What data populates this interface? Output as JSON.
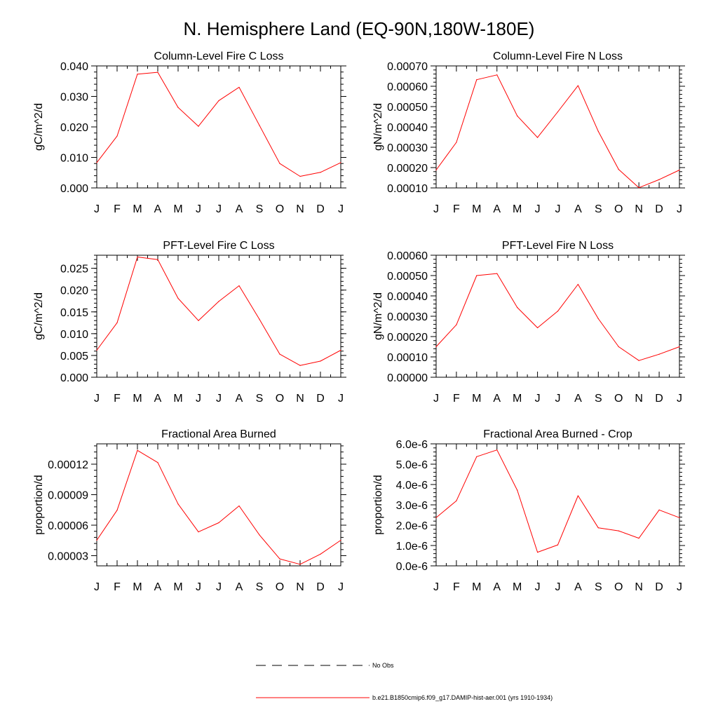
{
  "figure": {
    "title": "N. Hemisphere Land (EQ-90N,180W-180E)"
  },
  "colors": {
    "model_line": "#ff0000",
    "obs_line": "#000000",
    "axes": "#000000"
  },
  "legend": {
    "entries": [
      {
        "label": "No Obs",
        "style": "dashed",
        "color": "#000000"
      },
      {
        "label": "b.e21.B1850cmip6.f09_g17.DAMIP-hist-aer.001 (yrs 1910-1934)",
        "style": "solid",
        "color": "#ff0000"
      }
    ]
  },
  "chart_data": [
    {
      "type": "line",
      "title": "Column-Level Fire C Loss",
      "ylabel": "gC/m^2/d",
      "xlabel": "",
      "categories": [
        "J",
        "F",
        "M",
        "A",
        "M",
        "J",
        "J",
        "A",
        "S",
        "O",
        "N",
        "D",
        "J"
      ],
      "ylim": [
        0.0,
        0.04
      ],
      "yticks": [
        "0.000",
        "0.010",
        "0.020",
        "0.030",
        "0.040"
      ],
      "ytick_values": [
        0.0,
        0.01,
        0.02,
        0.03,
        0.04
      ],
      "series": [
        {
          "values": [
            0.0083,
            0.017,
            0.0373,
            0.0379,
            0.0264,
            0.0202,
            0.0286,
            0.033,
            0.0205,
            0.008,
            0.0038,
            0.0051,
            0.0083
          ]
        }
      ]
    },
    {
      "type": "line",
      "title": "Column-Level Fire N Loss",
      "ylabel": "gN/m^2/d",
      "xlabel": "",
      "categories": [
        "J",
        "F",
        "M",
        "A",
        "M",
        "J",
        "J",
        "A",
        "S",
        "O",
        "N",
        "D",
        "J"
      ],
      "ylim": [
        0.0001,
        0.0007
      ],
      "yticks": [
        "0.00010",
        "0.00020",
        "0.00030",
        "0.00040",
        "0.00050",
        "0.00060",
        "0.00070"
      ],
      "ytick_values": [
        0.0001,
        0.0002,
        0.0003,
        0.0004,
        0.0005,
        0.0006,
        0.0007
      ],
      "series": [
        {
          "values": [
            0.000188,
            0.000324,
            0.000632,
            0.000656,
            0.000454,
            0.000348,
            0.000474,
            0.000603,
            0.000378,
            0.000191,
            0.000101,
            0.000141,
            0.000188
          ]
        }
      ]
    },
    {
      "type": "line",
      "title": "PFT-Level Fire C Loss",
      "ylabel": "gC/m^2/d",
      "xlabel": "",
      "categories": [
        "J",
        "F",
        "M",
        "A",
        "M",
        "J",
        "J",
        "A",
        "S",
        "O",
        "N",
        "D",
        "J"
      ],
      "ylim": [
        0.0,
        0.028
      ],
      "yticks": [
        "0.000",
        "0.005",
        "0.010",
        "0.015",
        "0.020",
        "0.025"
      ],
      "ytick_values": [
        0.0,
        0.005,
        0.01,
        0.015,
        0.02,
        0.025
      ],
      "series": [
        {
          "values": [
            0.0062,
            0.0125,
            0.0276,
            0.027,
            0.0181,
            0.013,
            0.0174,
            0.021,
            0.0133,
            0.0053,
            0.0027,
            0.0037,
            0.0062
          ]
        }
      ]
    },
    {
      "type": "line",
      "title": "PFT-Level Fire N Loss",
      "ylabel": "gN/m^2/d",
      "xlabel": "",
      "categories": [
        "J",
        "F",
        "M",
        "A",
        "M",
        "J",
        "J",
        "A",
        "S",
        "O",
        "N",
        "D",
        "J"
      ],
      "ylim": [
        0.0,
        0.0006
      ],
      "yticks": [
        "0.00000",
        "0.00010",
        "0.00020",
        "0.00030",
        "0.00040",
        "0.00050",
        "0.00060"
      ],
      "ytick_values": [
        0.0,
        0.0001,
        0.0002,
        0.0003,
        0.0004,
        0.0005,
        0.0006
      ],
      "series": [
        {
          "values": [
            0.00015,
            0.000258,
            0.0005,
            0.00051,
            0.000343,
            0.000243,
            0.000325,
            0.000457,
            0.000288,
            0.00015,
            8.2e-05,
            0.000113,
            0.00015
          ]
        }
      ]
    },
    {
      "type": "line",
      "title": "Fractional Area Burned",
      "ylabel": "proportion/d",
      "xlabel": "",
      "categories": [
        "J",
        "F",
        "M",
        "A",
        "M",
        "J",
        "J",
        "A",
        "S",
        "O",
        "N",
        "D",
        "J"
      ],
      "ylim": [
        2e-05,
        0.00014
      ],
      "yticks": [
        "0.00003",
        "0.00006",
        "0.00009",
        "0.00012"
      ],
      "ytick_values": [
        3e-05,
        6e-05,
        9e-05,
        0.00012
      ],
      "series": [
        {
          "values": [
            4.52e-05,
            7.47e-05,
            0.0001336,
            0.0001216,
            8.08e-05,
            5.34e-05,
            6.24e-05,
            7.9e-05,
            5.04e-05,
            2.68e-05,
            2.15e-05,
            3.15e-05,
            4.52e-05
          ]
        }
      ]
    },
    {
      "type": "line",
      "title": "Fractional Area Burned - Crop",
      "ylabel": "proportion/d",
      "xlabel": "",
      "categories": [
        "J",
        "F",
        "M",
        "A",
        "M",
        "J",
        "J",
        "A",
        "S",
        "O",
        "N",
        "D",
        "J"
      ],
      "ylim": [
        0.0,
        6e-06
      ],
      "yticks": [
        "0.0e-6",
        "1.0e-6",
        "2.0e-6",
        "3.0e-6",
        "4.0e-6",
        "5.0e-6",
        "6.0e-6"
      ],
      "ytick_values": [
        0.0,
        1e-06,
        2e-06,
        3e-06,
        4e-06,
        5e-06,
        6e-06
      ],
      "series": [
        {
          "values": [
            2.37e-06,
            3.2e-06,
            5.37e-06,
            5.7e-06,
            3.72e-06,
            6.7e-07,
            1.03e-06,
            3.45e-06,
            1.87e-06,
            1.72e-06,
            1.36e-06,
            2.75e-06,
            2.37e-06
          ]
        }
      ]
    }
  ]
}
